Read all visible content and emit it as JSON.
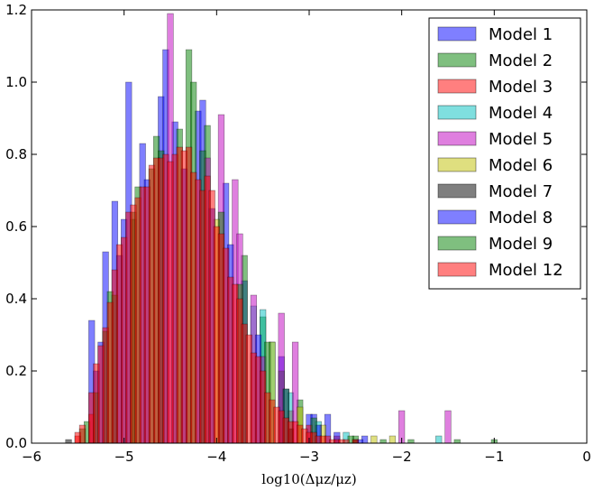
{
  "chart_data": {
    "type": "bar",
    "subtype": "overlapping-histogram",
    "title": "",
    "xlabel": "log10(Δμz/μz)",
    "ylabel": "",
    "xlim": [
      -6,
      0
    ],
    "ylim": [
      0,
      1.2
    ],
    "xticks": [
      "−6",
      "−5",
      "−4",
      "−3",
      "−2",
      "−1",
      "0"
    ],
    "yticks": [
      "0.0",
      "0.2",
      "0.4",
      "0.6",
      "0.8",
      "1.0",
      "1.2"
    ],
    "grid": false,
    "legend_position": "top-right",
    "bin_width": 0.065,
    "series": [
      {
        "name": "Model 1",
        "color": "#0000ff",
        "points": [
          [
            -5.35,
            0.34
          ],
          [
            -5.3,
            0.2
          ],
          [
            -5.2,
            0.53
          ],
          [
            -5.1,
            0.67
          ],
          [
            -5.0,
            0.62
          ],
          [
            -4.95,
            1.0
          ],
          [
            -4.8,
            0.83
          ],
          [
            -4.6,
            0.96
          ],
          [
            -4.55,
            1.09
          ],
          [
            -4.45,
            0.89
          ],
          [
            -4.2,
            0.92
          ],
          [
            -4.15,
            0.95
          ],
          [
            -3.9,
            0.72
          ],
          [
            -3.7,
            0.45
          ],
          [
            -3.3,
            0.24
          ],
          [
            -3.0,
            0.08
          ],
          [
            -2.95,
            0.08
          ],
          [
            -2.8,
            0.08
          ],
          [
            -2.4,
            0.02
          ]
        ]
      },
      {
        "name": "Model 2",
        "color": "#008000",
        "points": [
          [
            -5.4,
            0.06
          ],
          [
            -5.2,
            0.31
          ],
          [
            -5.15,
            0.42
          ],
          [
            -4.9,
            0.62
          ],
          [
            -4.85,
            0.71
          ],
          [
            -4.65,
            0.85
          ],
          [
            -4.4,
            0.87
          ],
          [
            -4.3,
            1.09
          ],
          [
            -4.25,
            1.0
          ],
          [
            -4.1,
            0.88
          ],
          [
            -3.7,
            0.52
          ],
          [
            -3.5,
            0.35
          ],
          [
            -3.3,
            0.2
          ],
          [
            -3.1,
            0.12
          ],
          [
            -2.5,
            0.02
          ]
        ]
      },
      {
        "name": "Model 3",
        "color": "#ff0000",
        "points": [
          [
            -5.5,
            0.02
          ],
          [
            -5.35,
            0.08
          ],
          [
            -3.2,
            0.09
          ],
          [
            -3.0,
            0.05
          ],
          [
            -2.7,
            0.02
          ]
        ]
      },
      {
        "name": "Model 4",
        "color": "#00bfbf",
        "points": [
          [
            -3.6,
            0.38
          ],
          [
            -3.5,
            0.37
          ],
          [
            -3.4,
            0.28
          ],
          [
            -3.2,
            0.14
          ],
          [
            -2.9,
            0.06
          ],
          [
            -2.6,
            0.03
          ],
          [
            -1.6,
            0.02
          ]
        ]
      },
      {
        "name": "Model 5",
        "color": "#bf00bf",
        "points": [
          [
            -4.5,
            1.19
          ],
          [
            -4.1,
            0.79
          ],
          [
            -3.95,
            0.91
          ],
          [
            -3.8,
            0.73
          ],
          [
            -3.75,
            0.58
          ],
          [
            -3.6,
            0.41
          ],
          [
            -3.5,
            0.24
          ],
          [
            -3.3,
            0.36
          ],
          [
            -3.15,
            0.28
          ],
          [
            -2.0,
            0.09
          ],
          [
            -1.5,
            0.09
          ]
        ]
      },
      {
        "name": "Model 6",
        "color": "#bfbf00",
        "points": [
          [
            -4.0,
            0.62
          ],
          [
            -3.4,
            0.28
          ],
          [
            -3.1,
            0.1
          ],
          [
            -2.85,
            0.05
          ],
          [
            -2.3,
            0.02
          ],
          [
            -2.1,
            0.02
          ]
        ]
      },
      {
        "name": "Model 7",
        "color": "#000000",
        "points": [
          [
            -5.6,
            0.01
          ],
          [
            -3.2,
            0.04
          ],
          [
            -2.5,
            0.01
          ]
        ]
      },
      {
        "name": "Model 8",
        "color": "#0000ff",
        "points": [
          [
            -5.25,
            0.28
          ],
          [
            -5.05,
            0.52
          ],
          [
            -4.75,
            0.73
          ],
          [
            -4.35,
            0.76
          ],
          [
            -4.05,
            0.65
          ],
          [
            -3.85,
            0.55
          ],
          [
            -3.55,
            0.3
          ],
          [
            -3.25,
            0.15
          ],
          [
            -2.9,
            0.05
          ],
          [
            -2.7,
            0.03
          ],
          [
            -2.45,
            0.01
          ]
        ]
      },
      {
        "name": "Model 9",
        "color": "#008000",
        "points": [
          [
            -5.45,
            0.04
          ],
          [
            -5.3,
            0.14
          ],
          [
            -5.1,
            0.41
          ],
          [
            -4.9,
            0.64
          ],
          [
            -4.7,
            0.76
          ],
          [
            -4.6,
            0.81
          ],
          [
            -4.15,
            0.81
          ],
          [
            -3.95,
            0.64
          ],
          [
            -3.75,
            0.44
          ],
          [
            -3.45,
            0.28
          ],
          [
            -3.25,
            0.15
          ],
          [
            -2.95,
            0.07
          ],
          [
            -2.55,
            0.02
          ],
          [
            -2.2,
            0.01
          ],
          [
            -1.9,
            0.01
          ],
          [
            -1.4,
            0.01
          ],
          [
            -1.0,
            0.01
          ]
        ]
      },
      {
        "name": "Model 12",
        "color": "#ff0000",
        "points": [
          [
            -5.5,
            0.03
          ],
          [
            -5.45,
            0.05
          ],
          [
            -5.35,
            0.14
          ],
          [
            -5.3,
            0.22
          ],
          [
            -5.25,
            0.27
          ],
          [
            -5.2,
            0.32
          ],
          [
            -5.15,
            0.39
          ],
          [
            -5.1,
            0.48
          ],
          [
            -5.05,
            0.55
          ],
          [
            -5.0,
            0.57
          ],
          [
            -4.95,
            0.64
          ],
          [
            -4.9,
            0.66
          ],
          [
            -4.85,
            0.68
          ],
          [
            -4.8,
            0.71
          ],
          [
            -4.75,
            0.71
          ],
          [
            -4.7,
            0.77
          ],
          [
            -4.65,
            0.79
          ],
          [
            -4.6,
            0.79
          ],
          [
            -4.55,
            0.8
          ],
          [
            -4.5,
            0.78
          ],
          [
            -4.45,
            0.8
          ],
          [
            -4.4,
            0.82
          ],
          [
            -4.35,
            0.81
          ],
          [
            -4.3,
            0.82
          ],
          [
            -4.25,
            0.75
          ],
          [
            -4.2,
            0.73
          ],
          [
            -4.15,
            0.7
          ],
          [
            -4.1,
            0.74
          ],
          [
            -4.05,
            0.7
          ],
          [
            -4.0,
            0.6
          ],
          [
            -3.95,
            0.58
          ],
          [
            -3.9,
            0.54
          ],
          [
            -3.85,
            0.46
          ],
          [
            -3.8,
            0.44
          ],
          [
            -3.75,
            0.4
          ],
          [
            -3.7,
            0.33
          ],
          [
            -3.65,
            0.3
          ],
          [
            -3.6,
            0.25
          ],
          [
            -3.55,
            0.24
          ],
          [
            -3.5,
            0.2
          ],
          [
            -3.45,
            0.14
          ],
          [
            -3.4,
            0.12
          ],
          [
            -3.35,
            0.1
          ],
          [
            -3.3,
            0.09
          ],
          [
            -3.25,
            0.07
          ],
          [
            -3.2,
            0.06
          ],
          [
            -3.15,
            0.06
          ],
          [
            -3.1,
            0.05
          ],
          [
            -3.05,
            0.04
          ],
          [
            -3.0,
            0.03
          ],
          [
            -2.95,
            0.03
          ],
          [
            -2.9,
            0.02
          ],
          [
            -2.85,
            0.02
          ],
          [
            -2.8,
            0.02
          ],
          [
            -2.75,
            0.01
          ],
          [
            -2.7,
            0.01
          ],
          [
            -2.65,
            0.01
          ],
          [
            -2.6,
            0.01
          ],
          [
            -2.5,
            0.01
          ]
        ]
      }
    ]
  }
}
